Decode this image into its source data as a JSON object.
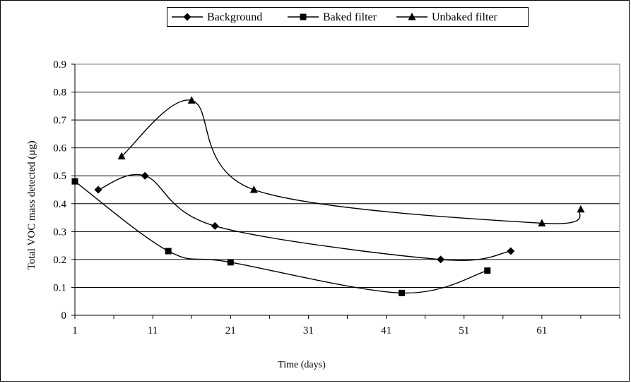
{
  "chart_data": {
    "type": "line",
    "xlabel": "Time (days)",
    "ylabel": "Total VOC mass detected (µg)",
    "xlim": [
      1,
      71
    ],
    "ylim": [
      0,
      0.9
    ],
    "x_ticks": [
      "1",
      "11",
      "21",
      "31",
      "41",
      "51",
      "61"
    ],
    "y_ticks": [
      "0",
      "0.1",
      "0.2",
      "0.3",
      "0.4",
      "0.5",
      "0.6",
      "0.7",
      "0.8",
      "0.9"
    ],
    "grid": "horizontal",
    "legend_position": "top",
    "series": [
      {
        "name": "Background",
        "marker": "diamond",
        "x": [
          4,
          10,
          19,
          48,
          57
        ],
        "y": [
          0.45,
          0.5,
          0.32,
          0.2,
          0.23
        ]
      },
      {
        "name": "Baked filter",
        "marker": "square",
        "x": [
          1,
          13,
          21,
          43,
          54
        ],
        "y": [
          0.48,
          0.23,
          0.19,
          0.08,
          0.16
        ]
      },
      {
        "name": "Unbaked filter",
        "marker": "triangle",
        "x": [
          7,
          16,
          24,
          61,
          66
        ],
        "y": [
          0.57,
          0.77,
          0.45,
          0.33,
          0.38
        ]
      }
    ]
  }
}
